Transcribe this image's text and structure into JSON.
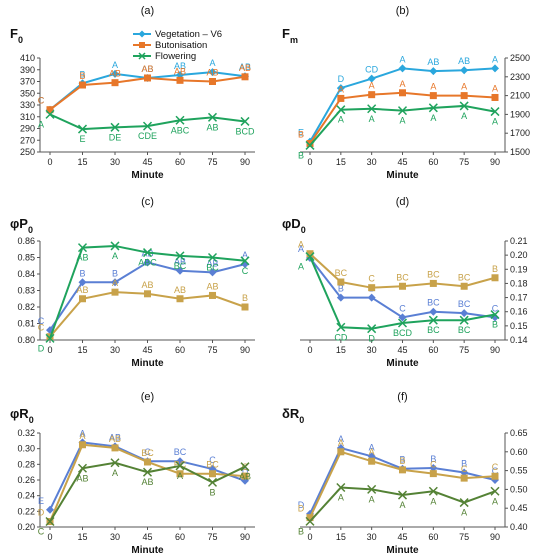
{
  "x_label": "Minute",
  "categories": [
    0,
    15,
    30,
    45,
    60,
    75,
    90
  ],
  "legend": [
    "Vegetation – V6",
    "Butonisation",
    "Flowering"
  ],
  "colors": {
    "veg": "#2aa7dd",
    "but": "#e7772a",
    "flo": "#1fa35d"
  },
  "panels": [
    {
      "letter": "(a)",
      "title": "F",
      "sub": "0",
      "axis_side": "left",
      "ylim": [
        250,
        410
      ],
      "ticks": [
        250,
        270,
        290,
        310,
        330,
        350,
        370,
        390,
        410
      ],
      "has_legend": true,
      "series": [
        {
          "key": "veg",
          "color": "#2aa7dd",
          "marker": "diamond",
          "values": [
            322,
            367,
            383,
            376,
            381,
            386,
            379
          ],
          "labels": [
            "C",
            "B",
            "A",
            "AB",
            "AB",
            "A",
            "AB"
          ]
        },
        {
          "key": "but",
          "color": "#e7772a",
          "marker": "square",
          "values": [
            322,
            364,
            368,
            376,
            372,
            370,
            378
          ],
          "labels": [
            "C",
            "B",
            "AB",
            "AB",
            "AB",
            "AB",
            "AB"
          ]
        },
        {
          "key": "flo",
          "color": "#1fa35d",
          "marker": "x",
          "values": [
            314,
            289,
            292,
            294,
            304,
            309,
            302
          ],
          "labels": [
            "A",
            "E",
            "DE",
            "CDE",
            "ABC",
            "AB",
            "BCD"
          ]
        }
      ]
    },
    {
      "letter": "(b)",
      "title": "F",
      "sub": "m",
      "axis_side": "right",
      "ylim": [
        1500,
        2500
      ],
      "ticks": [
        1500,
        1700,
        1900,
        2100,
        2300,
        2500
      ],
      "has_legend": false,
      "series": [
        {
          "key": "veg",
          "color": "#2aa7dd",
          "marker": "diamond",
          "values": [
            1610,
            2180,
            2280,
            2390,
            2360,
            2370,
            2390
          ],
          "labels": [
            "E",
            "D",
            "CD",
            "A",
            "AB",
            "AB",
            "A"
          ]
        },
        {
          "key": "but",
          "color": "#e7772a",
          "marker": "square",
          "values": [
            1590,
            2070,
            2110,
            2130,
            2100,
            2100,
            2080
          ],
          "labels": [
            "B",
            "A",
            "A",
            "A",
            "A",
            "A",
            "A"
          ]
        },
        {
          "key": "flo",
          "color": "#1fa35d",
          "marker": "x",
          "values": [
            1570,
            1950,
            1960,
            1940,
            1970,
            1990,
            1930
          ],
          "labels": [
            "B",
            "A",
            "A",
            "A",
            "A",
            "A",
            "A"
          ]
        }
      ]
    },
    {
      "letter": "(c)",
      "title": "φP",
      "sub": "0",
      "axis_side": "left",
      "ylim": [
        0.8,
        0.86
      ],
      "ticks": [
        0.8,
        0.81,
        0.82,
        0.83,
        0.84,
        0.85,
        0.86
      ],
      "has_legend": false,
      "series": [
        {
          "key": "veg",
          "color": "#5a7fd4",
          "marker": "diamond",
          "values": [
            0.806,
            0.835,
            0.835,
            0.847,
            0.842,
            0.841,
            0.846
          ],
          "labels": [
            "C",
            "B",
            "B",
            "AB",
            "AB",
            "AB",
            "A"
          ]
        },
        {
          "key": "but",
          "color": "#c8a24a",
          "marker": "square",
          "values": [
            0.802,
            0.825,
            0.829,
            0.828,
            0.825,
            0.827,
            0.82
          ],
          "labels": [
            "C",
            "AB",
            "A",
            "AB",
            "AB",
            "AB",
            "B"
          ]
        },
        {
          "key": "flo",
          "color": "#1fa35d",
          "marker": "x",
          "values": [
            0.801,
            0.856,
            0.857,
            0.853,
            0.851,
            0.85,
            0.848
          ],
          "labels": [
            "D",
            "AB",
            "A",
            "ABC",
            "BC",
            "BC",
            "C"
          ]
        }
      ]
    },
    {
      "letter": "(d)",
      "title": "φD",
      "sub": "0",
      "axis_side": "right",
      "ylim": [
        0.14,
        0.21
      ],
      "ticks": [
        0.14,
        0.15,
        0.16,
        0.17,
        0.18,
        0.19,
        0.2,
        0.21
      ],
      "has_legend": false,
      "series": [
        {
          "key": "veg",
          "color": "#5a7fd4",
          "marker": "diamond",
          "values": [
            0.198,
            0.17,
            0.17,
            0.156,
            0.16,
            0.159,
            0.156
          ],
          "labels": [
            "A",
            "B",
            "B",
            "C",
            "BC",
            "BC",
            "C"
          ]
        },
        {
          "key": "but",
          "color": "#c8a24a",
          "marker": "square",
          "values": [
            0.201,
            0.181,
            0.177,
            0.178,
            0.18,
            0.178,
            0.184
          ],
          "labels": [
            "A",
            "BC",
            "C",
            "BC",
            "BC",
            "BC",
            "B"
          ]
        },
        {
          "key": "flo",
          "color": "#1fa35d",
          "marker": "x",
          "values": [
            0.199,
            0.149,
            0.148,
            0.152,
            0.154,
            0.154,
            0.158
          ],
          "labels": [
            "A",
            "CD",
            "D",
            "BCD",
            "BC",
            "BC",
            "B"
          ]
        }
      ]
    },
    {
      "letter": "(e)",
      "title": "φR",
      "sub": "0",
      "axis_side": "left",
      "ylim": [
        0.2,
        0.32
      ],
      "ticks": [
        0.2,
        0.22,
        0.24,
        0.26,
        0.28,
        0.3,
        0.32
      ],
      "has_legend": false,
      "series": [
        {
          "key": "veg",
          "color": "#5a7fd4",
          "marker": "diamond",
          "values": [
            0.222,
            0.308,
            0.303,
            0.284,
            0.284,
            0.274,
            0.259
          ],
          "labels": [
            "E",
            "A",
            "AB",
            "C",
            "BC",
            "C",
            "D"
          ]
        },
        {
          "key": "but",
          "color": "#c8a24a",
          "marker": "square",
          "values": [
            0.207,
            0.305,
            0.301,
            0.283,
            0.268,
            0.268,
            0.265
          ],
          "labels": [
            "D",
            "A",
            "AB",
            "BC",
            "BC",
            "BC",
            "C"
          ]
        },
        {
          "key": "flo",
          "color": "#548235",
          "marker": "x",
          "values": [
            0.207,
            0.275,
            0.282,
            0.27,
            0.278,
            0.257,
            0.277
          ],
          "labels": [
            "C",
            "AB",
            "A",
            "AB",
            "A",
            "B",
            "AB"
          ]
        }
      ]
    },
    {
      "letter": "(f)",
      "title": "δR",
      "sub": "0",
      "axis_side": "right",
      "ylim": [
        0.4,
        0.65
      ],
      "ticks": [
        0.4,
        0.45,
        0.5,
        0.55,
        0.6,
        0.65
      ],
      "has_legend": false,
      "series": [
        {
          "key": "veg",
          "color": "#5a7fd4",
          "marker": "diamond",
          "values": [
            0.435,
            0.61,
            0.588,
            0.555,
            0.557,
            0.545,
            0.525
          ],
          "labels": [
            "D",
            "A",
            "A",
            "B",
            "B",
            "B",
            "C"
          ]
        },
        {
          "key": "but",
          "color": "#c8a24a",
          "marker": "square",
          "values": [
            0.425,
            0.6,
            0.575,
            0.552,
            0.542,
            0.53,
            0.535
          ],
          "labels": [
            "D",
            "A",
            "A",
            "B",
            "C",
            "C",
            "C"
          ]
        },
        {
          "key": "flo",
          "color": "#548235",
          "marker": "x",
          "values": [
            0.415,
            0.505,
            0.5,
            0.485,
            0.495,
            0.465,
            0.495
          ],
          "labels": [
            "B",
            "A",
            "A",
            "A",
            "A",
            "A",
            "A"
          ]
        }
      ]
    }
  ]
}
